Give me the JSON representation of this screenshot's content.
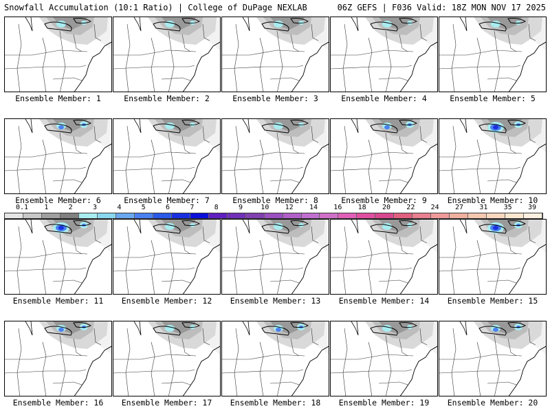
{
  "header": {
    "left": "Snowfall Accumulation (10:1 Ratio) | College of DuPage NEXLAB",
    "right": "06Z GEFS | F036 Valid: 18Z MON NOV 17 2025"
  },
  "members": [
    {
      "label": "Ensemble Member: 1",
      "intensity": 0.5
    },
    {
      "label": "Ensemble Member: 2",
      "intensity": 0.5
    },
    {
      "label": "Ensemble Member: 3",
      "intensity": 0.45
    },
    {
      "label": "Ensemble Member: 4",
      "intensity": 0.4
    },
    {
      "label": "Ensemble Member: 5",
      "intensity": 0.45
    },
    {
      "label": "Ensemble Member: 6",
      "intensity": 0.7
    },
    {
      "label": "Ensemble Member: 7",
      "intensity": 0.5
    },
    {
      "label": "Ensemble Member: 8",
      "intensity": 0.5
    },
    {
      "label": "Ensemble Member: 9",
      "intensity": 0.7
    },
    {
      "label": "Ensemble Member: 10",
      "intensity": 0.8
    },
    {
      "label": "Ensemble Member: 11",
      "intensity": 0.9
    },
    {
      "label": "Ensemble Member: 12",
      "intensity": 0.5
    },
    {
      "label": "Ensemble Member: 13",
      "intensity": 0.4
    },
    {
      "label": "Ensemble Member: 14",
      "intensity": 0.4
    },
    {
      "label": "Ensemble Member: 15",
      "intensity": 0.85
    },
    {
      "label": "Ensemble Member: 16",
      "intensity": 0.6
    },
    {
      "label": "Ensemble Member: 17",
      "intensity": 0.5
    },
    {
      "label": "Ensemble Member: 18",
      "intensity": 0.6
    },
    {
      "label": "Ensemble Member: 19",
      "intensity": 0.55
    },
    {
      "label": "Ensemble Member: 20",
      "intensity": 0.65
    }
  ],
  "legend": {
    "labels": [
      "0.1",
      "1",
      "2",
      "3",
      "4",
      "5",
      "6",
      "7",
      "8",
      "9",
      "10",
      "12",
      "14",
      "16",
      "18",
      "20",
      "22",
      "24",
      "27",
      "31",
      "35",
      "39"
    ],
    "colors": [
      "#e6e6e6",
      "#c8c8c8",
      "#a0a0a0",
      "#808080",
      "#a8ecf0",
      "#8ad8f0",
      "#6aa8f0",
      "#4a80f0",
      "#2a5ae8",
      "#1a30e0",
      "#0a10d8",
      "#6020c0",
      "#7030b8",
      "#8040b0",
      "#9a50c0",
      "#b060c8",
      "#c070d0",
      "#d070c8",
      "#e060b8",
      "#e050a0",
      "#d84890",
      "#e06080",
      "#e88090",
      "#f09a9a",
      "#f0b0a0",
      "#f5c8b0",
      "#fad8c0",
      "#fce8d0",
      "#fef0e0"
    ]
  }
}
